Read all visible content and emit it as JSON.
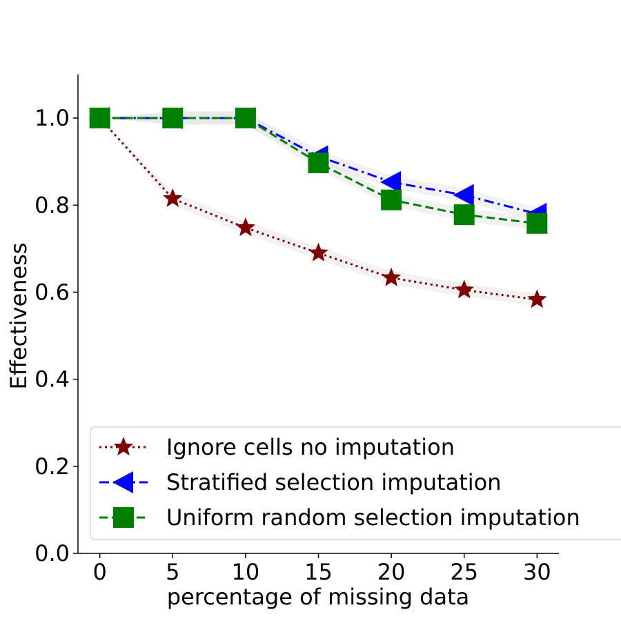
{
  "chart_data": {
    "type": "line",
    "title": "",
    "xlabel": "percentage of missing data",
    "ylabel": "Effectiveness",
    "x": [
      0,
      5,
      10,
      15,
      20,
      25,
      30
    ],
    "xlim": [
      -1.5,
      31.5
    ],
    "ylim": [
      0,
      1.1
    ],
    "xticks": [
      "0",
      "5",
      "10",
      "15",
      "20",
      "25",
      "30"
    ],
    "yticks": [
      "0.0",
      "0.2",
      "0.4",
      "0.6",
      "0.8",
      "1.0"
    ],
    "grid": false,
    "legend_position": "bottom-right",
    "series": [
      {
        "name": "Ignore cells no imputation",
        "values": [
          1.0,
          0.815,
          0.748,
          0.69,
          0.633,
          0.605,
          0.583
        ],
        "color": "#800000",
        "marker": "star",
        "linestyle": "dotted"
      },
      {
        "name": "Stratified selection imputation",
        "values": [
          1.0,
          1.0,
          1.0,
          0.912,
          0.853,
          0.823,
          0.78
        ],
        "color": "#0000ff",
        "marker": "triangle-left",
        "linestyle": "dashdot"
      },
      {
        "name": "Uniform random selection imputation",
        "values": [
          1.0,
          1.0,
          1.0,
          0.897,
          0.812,
          0.778,
          0.758
        ],
        "color": "#008000",
        "marker": "square",
        "linestyle": "dashed"
      }
    ]
  }
}
